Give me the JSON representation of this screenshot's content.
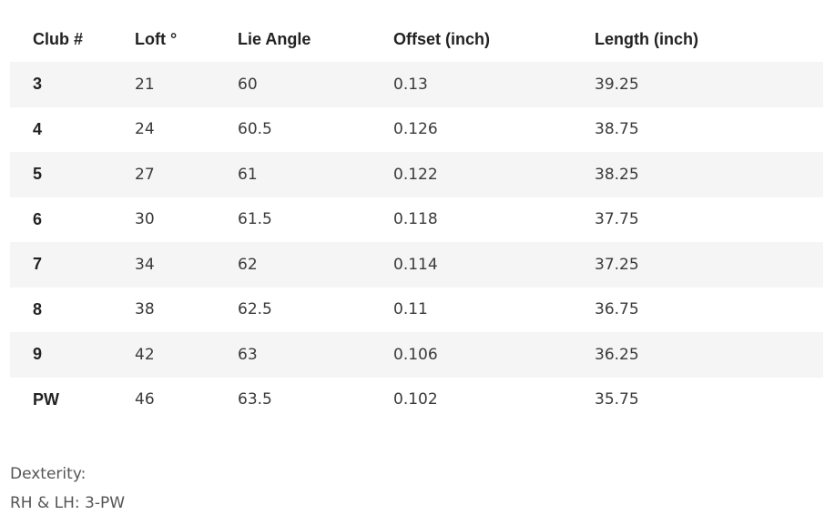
{
  "table": {
    "headers": {
      "club": "Club #",
      "loft": "Loft °",
      "lie": "Lie Angle",
      "offset": "Offset (inch)",
      "length": "Length (inch)"
    },
    "rows": [
      {
        "club": "3",
        "loft": "21",
        "lie": "60",
        "offset": "0.13",
        "length": "39.25"
      },
      {
        "club": "4",
        "loft": "24",
        "lie": "60.5",
        "offset": "0.126",
        "length": "38.75"
      },
      {
        "club": "5",
        "loft": "27",
        "lie": "61",
        "offset": "0.122",
        "length": "38.25"
      },
      {
        "club": "6",
        "loft": "30",
        "lie": "61.5",
        "offset": "0.118",
        "length": "37.75"
      },
      {
        "club": "7",
        "loft": "34",
        "lie": "62",
        "offset": "0.114",
        "length": "37.25"
      },
      {
        "club": "8",
        "loft": "38",
        "lie": "62.5",
        "offset": "0.11",
        "length": "36.75"
      },
      {
        "club": "9",
        "loft": "42",
        "lie": "63",
        "offset": "0.106",
        "length": "36.25"
      },
      {
        "club": "PW",
        "loft": "46",
        "lie": "63.5",
        "offset": "0.102",
        "length": "35.75"
      }
    ]
  },
  "notes": {
    "dexterity_label": "Dexterity:",
    "dexterity_value": "RH & LH: 3-PW"
  }
}
